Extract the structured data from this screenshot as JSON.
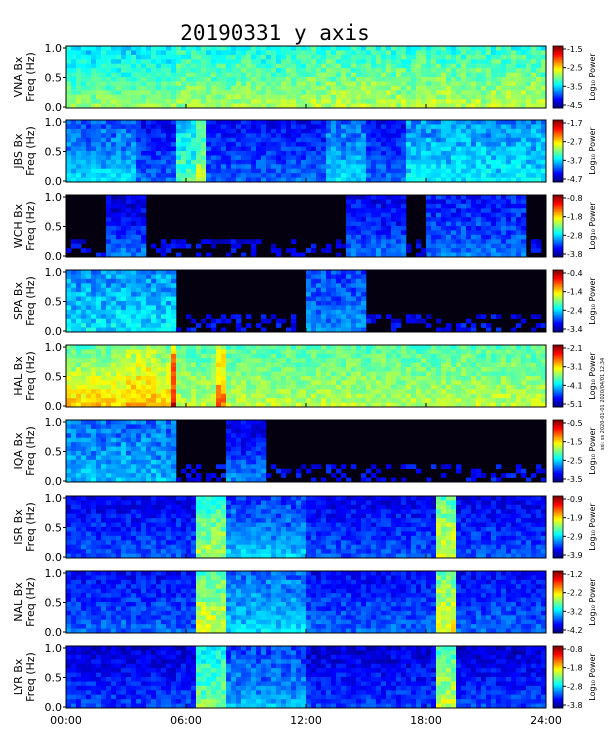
{
  "chart_data": {
    "type": "heatmap",
    "title": "20190331  y axis",
    "xlabel": "",
    "x_ticks": [
      "00:00",
      "06:00",
      "12:00",
      "18:00",
      "24:00"
    ],
    "x_range_hours": [
      0,
      24
    ],
    "y_ticks": [
      "0.0",
      "0.5",
      "1.0"
    ],
    "y_range_hz": [
      0,
      1.0
    ],
    "colorbar_label": "Log₁₀ Power",
    "side_note": "ssi: ss 2020-01-01 2020/04/01 12:34",
    "panels": [
      {
        "station": "VNA",
        "ylabel_top": "VNA Bx",
        "ylabel_bottom": "Freq (Hz)",
        "cbar_ticks": [
          "-1.5",
          "-2.5",
          "-3.5",
          "-4.5"
        ],
        "cmin": -4.5,
        "cmax": -1.5,
        "background": 0.3,
        "activity": [
          [
            0.0,
            5.5,
            0.45
          ],
          [
            5.5,
            12,
            0.52
          ],
          [
            12,
            24,
            0.55
          ]
        ]
      },
      {
        "station": "JBS",
        "ylabel_top": "JBS Bx",
        "ylabel_bottom": "Freq (Hz)",
        "cbar_ticks": [
          "-1.7",
          "-2.7",
          "-3.7",
          "-4.7"
        ],
        "cmin": -4.7,
        "cmax": -1.7,
        "background": 0.12,
        "activity": [
          [
            0,
            3.5,
            0.28
          ],
          [
            5.5,
            6.5,
            0.45
          ],
          [
            6.5,
            7.0,
            0.55
          ],
          [
            13,
            15,
            0.3
          ],
          [
            17,
            24,
            0.35
          ]
        ]
      },
      {
        "station": "WCH",
        "ylabel_top": "WCH Bx",
        "ylabel_bottom": "Freq (Hz)",
        "cbar_ticks": [
          "-0.8",
          "-1.8",
          "-2.8",
          "-3.8"
        ],
        "cmin": -3.8,
        "cmax": -0.8,
        "background": 0.02,
        "activity": [
          [
            2,
            4,
            0.12
          ],
          [
            14,
            17,
            0.15
          ],
          [
            18,
            23,
            0.2
          ]
        ]
      },
      {
        "station": "SPA",
        "ylabel_top": "SPA Bx",
        "ylabel_bottom": "Freq (Hz)",
        "cbar_ticks": [
          "-0.4",
          "-1.4",
          "-2.4",
          "-3.4"
        ],
        "cmin": -3.4,
        "cmax": -0.4,
        "background": 0.03,
        "activity": [
          [
            0,
            5.5,
            0.35
          ],
          [
            12,
            15,
            0.25
          ]
        ]
      },
      {
        "station": "HAL",
        "ylabel_top": "HAL Bx",
        "ylabel_bottom": "Freq (Hz)",
        "cbar_ticks": [
          "-2.1",
          "-3.1",
          "-4.1",
          "-5.1"
        ],
        "cmin": -5.1,
        "cmax": -2.1,
        "background": 0.45,
        "activity": [
          [
            3.0,
            4.5,
            0.7
          ],
          [
            4.5,
            5.5,
            0.65
          ],
          [
            5.2,
            5.6,
            0.9
          ],
          [
            7.5,
            8.0,
            0.75
          ],
          [
            0,
            3,
            0.35
          ]
        ]
      },
      {
        "station": "IQA",
        "ylabel_top": "IQA Bx",
        "ylabel_bottom": "Freq (Hz)",
        "cbar_ticks": [
          "-0.5",
          "-1.5",
          "-2.5",
          "-3.5"
        ],
        "cmin": -3.5,
        "cmax": -0.5,
        "background": 0.04,
        "activity": [
          [
            0,
            5.5,
            0.3
          ],
          [
            8,
            10,
            0.12
          ]
        ]
      },
      {
        "station": "ISR",
        "ylabel_top": "ISR Bx",
        "ylabel_bottom": "Freq (Hz)",
        "cbar_ticks": [
          "-0.9",
          "-1.9",
          "-2.9",
          "-3.9"
        ],
        "cmin": -3.9,
        "cmax": -0.9,
        "background": 0.1,
        "activity": [
          [
            6.5,
            8.0,
            0.55
          ],
          [
            18.5,
            19.5,
            0.6
          ],
          [
            8,
            12,
            0.25
          ]
        ]
      },
      {
        "station": "NAL",
        "ylabel_top": "NAL Bx",
        "ylabel_bottom": "Freq (Hz)",
        "cbar_ticks": [
          "-1.2",
          "-2.2",
          "-3.2",
          "-4.2"
        ],
        "cmin": -4.2,
        "cmax": -1.2,
        "background": 0.12,
        "activity": [
          [
            6.5,
            8.0,
            0.6
          ],
          [
            18.5,
            19.5,
            0.62
          ],
          [
            8,
            12,
            0.3
          ]
        ]
      },
      {
        "station": "LYR",
        "ylabel_top": "LYR Bx",
        "ylabel_bottom": "Freq (Hz)",
        "cbar_ticks": [
          "-0.8",
          "-1.8",
          "-2.8",
          "-3.8"
        ],
        "cmin": -3.8,
        "cmax": -0.8,
        "background": 0.08,
        "activity": [
          [
            6.5,
            8.0,
            0.5
          ],
          [
            18.5,
            19.5,
            0.58
          ],
          [
            8,
            12,
            0.25
          ]
        ]
      }
    ]
  }
}
